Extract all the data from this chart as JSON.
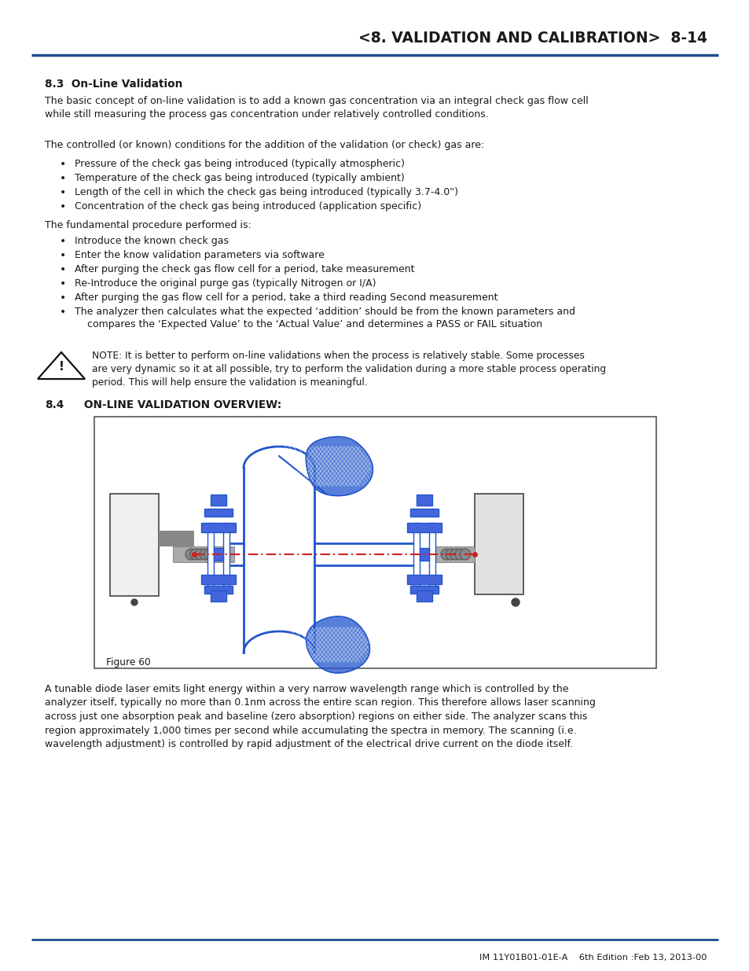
{
  "page_title": "<8. VALIDATION AND CALIBRATION>  8-14",
  "title_color": "#1a1a1a",
  "header_line_color": "#1e4d8c",
  "footer_line_color": "#1e4d8c",
  "footer_text": "IM 11Y01B01-01E-A    6th Edition :Feb 13, 2013-00",
  "section_83_title": "8.3  On-Line Validation",
  "section_84_title": "8.4",
  "section_84_heading": "ON-LINE VALIDATION OVERVIEW:",
  "body_text_color": "#1a1a1a",
  "figure_label": "Figure 60",
  "paragraph1": "The basic concept of on-line validation is to add a known gas concentration via an integral check gas flow cell\nwhile still measuring the process gas concentration under relatively controlled conditions.",
  "paragraph2": "The controlled (or known) conditions for the addition of the validation (or check) gas are:",
  "bullets1": [
    "Pressure of the check gas being introduced (typically atmospheric)",
    "Temperature of the check gas being introduced (typically ambient)",
    "Length of the cell in which the check gas being introduced (typically 3.7-4.0\")",
    "Concentration of the check gas being introduced (application specific)"
  ],
  "paragraph3": "The fundamental procedure performed is:",
  "bullets2": [
    "Introduce the known check gas",
    "Enter the know validation parameters via software",
    "After purging the check gas flow cell for a period, take measurement",
    "Re-Introduce the original purge gas (typically Nitrogen or I/A)",
    "After purging the gas flow cell for a period, take a third reading Second measurement",
    "The analyzer then calculates what the expected ‘addition’ should be from the known parameters and\n    compares the ‘Expected Value’ to the ‘Actual Value’ and determines a PASS or FAIL situation"
  ],
  "note_text": "NOTE: It is better to perform on-line validations when the process is relatively stable. Some processes\nare very dynamic so it at all possible, try to perform the validation during a more stable process operating\nperiod. This will help ensure the validation is meaningful.",
  "paragraph_final": "A tunable diode laser emits light energy within a very narrow wavelength range which is controlled by the\nanalyzer itself, typically no more than 0.1nm across the entire scan region. This therefore allows laser scanning\nacross just one absorption peak and baseline (zero absorption) regions on either side. The analyzer scans this\nregion approximately 1,000 times per second while accumulating the spectra in memory. The scanning (i.e.\nwavelength adjustment) is controlled by rapid adjustment of the electrical drive current on the diode itself.",
  "blue": "#2255cc",
  "blue_light": "#4466dd",
  "grey_dark": "#444444",
  "grey_med": "#888888",
  "grey_light": "#cccccc",
  "red_laser": "#cc2222"
}
